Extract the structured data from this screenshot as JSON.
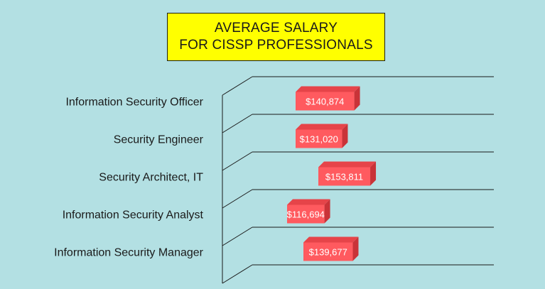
{
  "title": {
    "line1": "AVERAGE SALARY",
    "line2": "FOR CISSP PROFESSIONALS"
  },
  "colors": {
    "background": "#b3e0e3",
    "title_bg": "#ffff00",
    "bar_front": "#ff5a5f",
    "bar_top": "#e64449",
    "bar_side": "#c93338",
    "grid": "#1a1a1a"
  },
  "chart_data": {
    "type": "bar",
    "orientation": "horizontal",
    "style": "3d",
    "title": "AVERAGE SALARY FOR CISSP PROFESSIONALS",
    "categories": [
      "Information Security Officer",
      "Security Engineer",
      "Security Architect, IT",
      "Information Security Analyst",
      "Information Security Manager"
    ],
    "values": [
      140874,
      131020,
      153811,
      116694,
      139677
    ],
    "data_labels": [
      "$140,874",
      "$131,020",
      "$153,811",
      "$116,694",
      "$139,677"
    ],
    "xlabel": "",
    "ylabel": "",
    "grid": true,
    "legend": "none"
  }
}
